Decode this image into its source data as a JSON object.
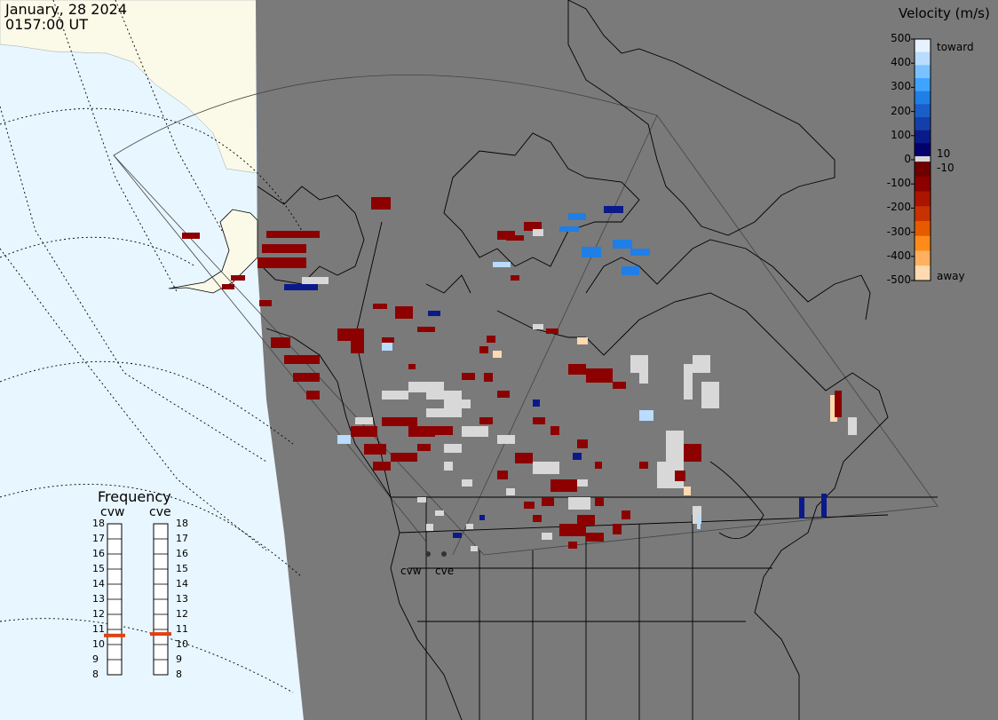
{
  "header": {
    "date": "January, 28 2024",
    "time": "0157:00 UT"
  },
  "colorbar": {
    "title": "Velocity (m/s)",
    "ticks": [
      "500",
      "400",
      "300",
      "200",
      "100",
      "0",
      "-100",
      "-200",
      "-300",
      "-400",
      "-500"
    ],
    "inner_labels": [
      "10",
      "-10"
    ],
    "toward_label": "toward",
    "away_label": "away",
    "colors_toward": [
      "#e6f2ff",
      "#b9dcff",
      "#79c2ff",
      "#3fa4ff",
      "#1f7fe6",
      "#1a5ec8",
      "#153fa8",
      "#0b1a8a",
      "#04006e"
    ],
    "ground_color": "#d8d8d8",
    "colors_away": [
      "#6e0000",
      "#8c0000",
      "#aa1400",
      "#c83200",
      "#e65a00",
      "#ff8c1a",
      "#ffb060",
      "#ffd9b0"
    ]
  },
  "frequency": {
    "title": "Frequency",
    "radars": [
      "cvw",
      "cve"
    ],
    "scale": [
      "18",
      "17",
      "16",
      "15",
      "14",
      "13",
      "12",
      "11",
      "10",
      "9",
      "8"
    ],
    "values_mhz": [
      10.6,
      10.7
    ],
    "marker_color": "#e04010"
  },
  "map": {
    "site_labels": [
      "cvw",
      "cve"
    ],
    "ocean_color": "#e8f6ff",
    "night_color": "#7a7a7a",
    "land_day_color": "#fbf9e8"
  }
}
